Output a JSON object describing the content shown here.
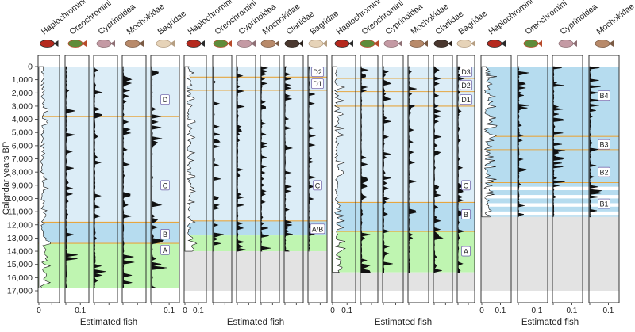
{
  "chart_data": {
    "type": "area",
    "ylabel": "Calendar years BP",
    "xlabel": "Estimated fish",
    "ylim": [
      0,
      17000
    ],
    "yticks": [
      0,
      1000,
      2000,
      3000,
      4000,
      5000,
      6000,
      7000,
      8000,
      9000,
      10000,
      11000,
      12000,
      13000,
      14000,
      15000,
      16000,
      17000
    ],
    "ytick_labels": [
      "0",
      "1,000",
      "2,000",
      "3,000",
      "4,000",
      "5,000",
      "6,000",
      "7,000",
      "8,000",
      "9,000",
      "10,000",
      "11,000",
      "12,000",
      "13,000",
      "14,000",
      "15,000",
      "16,000",
      "17,000"
    ],
    "colors": {
      "zone_light": "#dcedf7",
      "zone_mid": "#b6dcef",
      "zone_green": "#bff5b1",
      "no_data": "#e3e3e3",
      "boundary": "#e6a640",
      "silhouette": "#111111"
    },
    "cores": [
      {
        "taxa": [
          {
            "name": "Haplochromini",
            "xmax": "0.1",
            "ticks": [
              "0",
              ""
            ]
          },
          {
            "name": "Oreochromini",
            "xmax": "0.1",
            "ticks": [
              "",
              "0.1"
            ]
          },
          {
            "name": "Cyprinoidea",
            "xmax": "0.1",
            "ticks": [
              "",
              ""
            ]
          },
          {
            "name": "Mochokidae",
            "xmax": "0.1",
            "ticks": [
              "",
              ""
            ]
          },
          {
            "name": "Bagridae",
            "xmax": "0.1",
            "ticks": [
              "",
              "0.1"
            ]
          }
        ],
        "zones": [
          {
            "label": "D",
            "from": 0,
            "to": 3800,
            "shade": "light",
            "label_at": 2500
          },
          {
            "label": "C",
            "from": 3800,
            "to": 11800,
            "shade": "light",
            "label_at": 9000
          },
          {
            "label": "B",
            "from": 11800,
            "to": 13400,
            "shade": "mid",
            "label_at": 12700
          },
          {
            "label": "A",
            "from": 13400,
            "to": 16800,
            "shade": "green",
            "label_at": 13900
          }
        ],
        "no_data": [],
        "boundaries": [
          3800,
          11800,
          13400
        ]
      },
      {
        "taxa": [
          {
            "name": "Haplochromini",
            "xmax": "0.1",
            "ticks": [
              "0",
              "0.1"
            ]
          },
          {
            "name": "Oreochromini",
            "xmax": "0.1",
            "ticks": [
              "",
              ""
            ]
          },
          {
            "name": "Cyprinoidea",
            "xmax": "0.1",
            "ticks": [
              "",
              ""
            ]
          },
          {
            "name": "Mochokidae",
            "xmax": "0.1",
            "ticks": [
              "",
              ""
            ]
          },
          {
            "name": "Clariidae",
            "xmax": "0.1",
            "ticks": [
              "",
              ""
            ]
          },
          {
            "name": "Bagridae",
            "xmax": "0.1",
            "ticks": [
              "",
              ""
            ]
          }
        ],
        "zones": [
          {
            "label": "D2",
            "from": 0,
            "to": 800,
            "shade": "light",
            "label_at": 400
          },
          {
            "label": "D1",
            "from": 800,
            "to": 1800,
            "shade": "light",
            "label_at": 1300
          },
          {
            "label": "C",
            "from": 1800,
            "to": 11700,
            "shade": "light",
            "label_at": 9000
          },
          {
            "label": "A/B",
            "from": 11700,
            "to": 12800,
            "shade": "mid",
            "label_at": 12300
          },
          {
            "label": "",
            "from": 12800,
            "to": 14000,
            "shade": "green",
            "label_at": 13400
          }
        ],
        "no_data": [
          [
            14000,
            17000
          ]
        ],
        "boundaries": [
          800,
          1800,
          11700
        ]
      },
      {
        "taxa": [
          {
            "name": "Haplochromini",
            "xmax": "0.1",
            "ticks": [
              "0",
              "0.1"
            ]
          },
          {
            "name": "Oreochromini",
            "xmax": "0.1",
            "ticks": [
              "",
              ""
            ]
          },
          {
            "name": "Cyprinoidea",
            "xmax": "0.1",
            "ticks": [
              "",
              ""
            ]
          },
          {
            "name": "Mochokidae",
            "xmax": "0.1",
            "ticks": [
              "",
              ""
            ]
          },
          {
            "name": "Clariidae",
            "xmax": "0.1",
            "ticks": [
              "",
              ""
            ]
          },
          {
            "name": "Bagridae",
            "xmax": "0.1",
            "ticks": [
              "",
              ""
            ]
          }
        ],
        "zones": [
          {
            "label": "D3",
            "from": 0,
            "to": 900,
            "shade": "light",
            "label_at": 400
          },
          {
            "label": "D2",
            "from": 900,
            "to": 1900,
            "shade": "light",
            "label_at": 1400
          },
          {
            "label": "D1",
            "from": 1900,
            "to": 3000,
            "shade": "light",
            "label_at": 2500
          },
          {
            "label": "C",
            "from": 3000,
            "to": 10300,
            "shade": "light",
            "label_at": 9000
          },
          {
            "label": "B",
            "from": 10300,
            "to": 12500,
            "shade": "mid",
            "label_at": 11200
          },
          {
            "label": "A",
            "from": 12500,
            "to": 15600,
            "shade": "green",
            "label_at": 14000
          }
        ],
        "no_data": [
          [
            15600,
            17000
          ]
        ],
        "boundaries": [
          900,
          1900,
          3000,
          10300,
          12500
        ]
      },
      {
        "taxa": [
          {
            "name": "Haplochromini",
            "xmax": "0.1",
            "ticks": [
              "0",
              "0.1"
            ]
          },
          {
            "name": "Oreochromini",
            "xmax": "0.1",
            "ticks": [
              "",
              "0.1"
            ]
          },
          {
            "name": "Cyprinoidea",
            "xmax": "0.1",
            "ticks": [
              "",
              "0.1"
            ]
          },
          {
            "name": "Mochokidae",
            "xmax": "0.1",
            "ticks": [
              "",
              "0.1"
            ]
          }
        ],
        "zones": [
          {
            "label": "B4",
            "from": 0,
            "to": 5300,
            "shade": "mid",
            "label_at": 2200
          },
          {
            "label": "B3",
            "from": 5300,
            "to": 6300,
            "shade": "mid",
            "label_at": 5900
          },
          {
            "label": "B2",
            "from": 6300,
            "to": 8800,
            "shade": "mid",
            "label_at": 8000
          },
          {
            "label": "B1",
            "from": 8800,
            "to": 11400,
            "shade": "banded",
            "label_at": 10400
          }
        ],
        "no_data": [
          [
            11400,
            17000
          ]
        ],
        "boundaries": [
          5300,
          6300,
          8800
        ]
      }
    ]
  }
}
